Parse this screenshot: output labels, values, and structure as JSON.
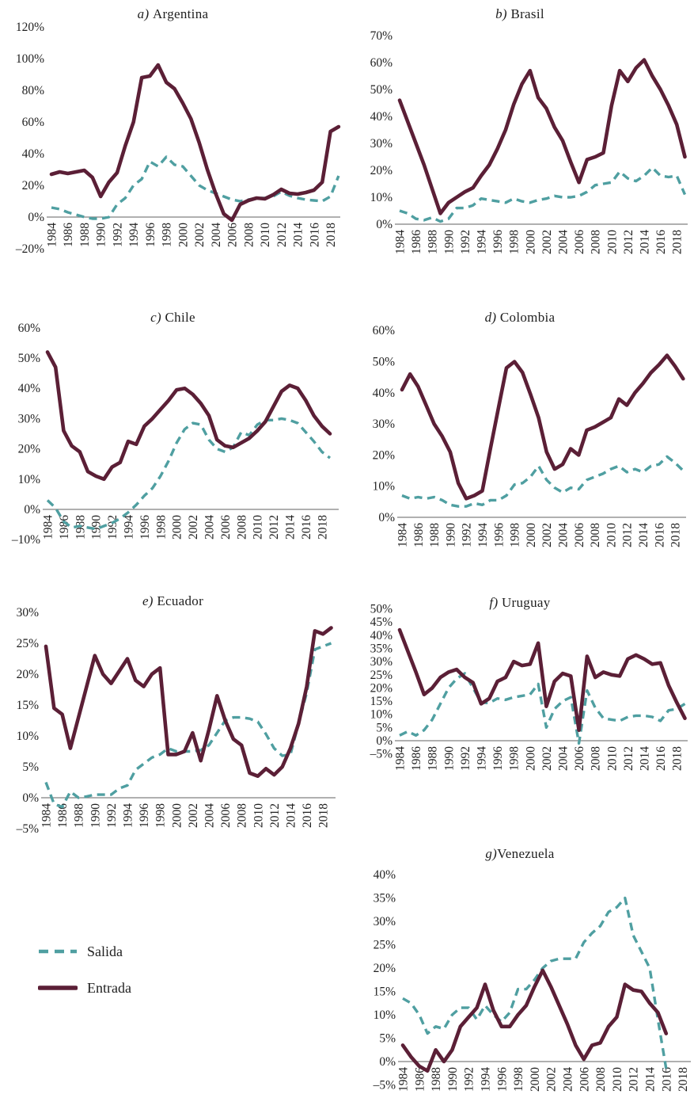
{
  "figure": {
    "description": "Seven small-multiple line charts of inflows and outflows (percent) for Latin American countries, 1984-2019",
    "unit": "%"
  },
  "legend": {
    "salida": "Salida",
    "entrada": "Entrada"
  },
  "colors": {
    "salida": "#4f9fa1",
    "entrada": "#5b1f36",
    "axis": "#808080",
    "text": "#1f1f1f"
  },
  "x_tick_labels": [
    "1984",
    "1986",
    "1988",
    "1990",
    "1992",
    "1994",
    "1996",
    "1998",
    "2000",
    "2002",
    "2004",
    "2006",
    "2008",
    "2010",
    "2012",
    "2014",
    "2016",
    "2018"
  ],
  "chart_data": [
    {
      "id": "a",
      "type": "line",
      "title_prefix": "a)",
      "title": "Argentina",
      "ylim": [
        -20,
        120
      ],
      "ytick_step": 20,
      "x_start": 1984,
      "grid": false,
      "series": [
        {
          "name": "Salida",
          "values": [
            6,
            5,
            3,
            1.5,
            0,
            -1,
            -1,
            0,
            8,
            12,
            20,
            24,
            35,
            32,
            38,
            33,
            32,
            26,
            20,
            17,
            15,
            13,
            11,
            10,
            11,
            12,
            12,
            13,
            16,
            13.5,
            12,
            11,
            10.5,
            10,
            13,
            26
          ]
        },
        {
          "name": "Entrada",
          "values": [
            27,
            28.5,
            27.5,
            28.5,
            29.5,
            25,
            13,
            22,
            28,
            45,
            60,
            88,
            89,
            96,
            85,
            81,
            72,
            62,
            47,
            30,
            15,
            2,
            -2,
            8,
            10.5,
            12,
            11.5,
            14,
            17.5,
            15,
            14.5,
            15.5,
            17,
            22,
            54,
            57
          ]
        }
      ]
    },
    {
      "id": "b",
      "type": "line",
      "title_prefix": "b)",
      "title": "Brasil",
      "ylim": [
        0,
        70
      ],
      "ytick_step": 10,
      "x_start": 1984,
      "grid": false,
      "series": [
        {
          "name": "Salida",
          "values": [
            5,
            4,
            2,
            1.5,
            2.5,
            1,
            2,
            6,
            6,
            7,
            9.5,
            9,
            8.5,
            8,
            9.5,
            8.5,
            8,
            9,
            9.5,
            10.5,
            10,
            10,
            10.5,
            12,
            14.5,
            15,
            15.5,
            19.5,
            17,
            16,
            18,
            21,
            18,
            17.5,
            18,
            11
          ]
        },
        {
          "name": "Entrada",
          "values": [
            46,
            38,
            30,
            22,
            13,
            4,
            8,
            10,
            12,
            13.5,
            18,
            22,
            28,
            35,
            44.5,
            52,
            57,
            47,
            43,
            36,
            31,
            23,
            15.5,
            24,
            25,
            26.5,
            44,
            57,
            53,
            58,
            61,
            55,
            50,
            44,
            37,
            25
          ]
        }
      ]
    },
    {
      "id": "c",
      "type": "line",
      "title_prefix": "c)",
      "title": "Chile",
      "ylim": [
        -10,
        60
      ],
      "ytick_step": 10,
      "x_start": 1984,
      "grid": false,
      "series": [
        {
          "name": "Salida",
          "values": [
            3,
            0.5,
            -4,
            -6,
            -5.5,
            -6,
            -6.5,
            -5.5,
            -4.5,
            -3,
            -1,
            1.5,
            4.5,
            7,
            11,
            16,
            22,
            26.5,
            28.5,
            28,
            23,
            20,
            19,
            20.5,
            25.5,
            24.5,
            28,
            29.5,
            29.5,
            30,
            29.5,
            28.5,
            25.5,
            22.5,
            19,
            17
          ]
        },
        {
          "name": "Entrada",
          "values": [
            52,
            47,
            26,
            21,
            19,
            12.5,
            11,
            10,
            14,
            15.5,
            22.5,
            21.5,
            27.5,
            30,
            33,
            36,
            39.5,
            40,
            38,
            35,
            31,
            23,
            21,
            20.5,
            22,
            23.5,
            26,
            29,
            34,
            39,
            41,
            40,
            36,
            31,
            27.5,
            25
          ]
        }
      ]
    },
    {
      "id": "d",
      "type": "line",
      "title_prefix": "d)",
      "title": "Colombia",
      "ylim": [
        0,
        60
      ],
      "ytick_step": 10,
      "x_start": 1984,
      "grid": false,
      "series": [
        {
          "name": "Salida",
          "values": [
            7,
            6,
            6.5,
            6,
            6.5,
            5.5,
            4,
            3.5,
            3.5,
            4.5,
            4,
            5.5,
            5.5,
            7,
            10.5,
            11,
            13,
            16.5,
            12,
            9.5,
            8,
            9.5,
            9,
            12,
            13,
            14,
            15.5,
            16.5,
            14.5,
            15.5,
            14.5,
            16.5,
            17,
            19.5,
            17.5,
            15
          ]
        },
        {
          "name": "Entrada",
          "values": [
            41,
            46,
            42,
            36,
            30,
            26,
            21,
            11,
            6,
            7,
            8.5,
            22,
            35,
            48,
            50,
            46.5,
            39.5,
            32,
            21,
            15.5,
            17,
            22,
            20,
            28,
            29,
            30.5,
            32,
            38,
            36,
            40,
            43,
            46.5,
            49,
            52,
            48.5,
            44.5
          ]
        }
      ]
    },
    {
      "id": "e",
      "type": "line",
      "title_prefix": "e)",
      "title": "Ecuador",
      "ylim": [
        -5,
        30
      ],
      "ytick_step": 5,
      "x_start": 1984,
      "grid": false,
      "series": [
        {
          "name": "Salida",
          "values": [
            2.5,
            -1,
            -1.5,
            1,
            0,
            0.2,
            0.5,
            0.5,
            0.5,
            1.5,
            2,
            4.5,
            5.5,
            6.5,
            7,
            8,
            7.5,
            7.5,
            7.5,
            7.7,
            8.5,
            10.5,
            12.5,
            13,
            13,
            12.8,
            12.3,
            10.3,
            8,
            6.8,
            7,
            12,
            17,
            24,
            24.5,
            25
          ]
        },
        {
          "name": "Entrada",
          "values": [
            24.5,
            14.5,
            13.5,
            8,
            13,
            18,
            23,
            20,
            18.5,
            20.5,
            22.5,
            19,
            18,
            20,
            21,
            7,
            7,
            7.5,
            10.5,
            6,
            11,
            16.5,
            12.5,
            9.5,
            8.5,
            4,
            3.5,
            4.7,
            3.7,
            5,
            8,
            12,
            18,
            27,
            26.5,
            27.5
          ]
        }
      ]
    },
    {
      "id": "f",
      "type": "line",
      "title_prefix": "f)",
      "title": "Uruguay",
      "ylim": [
        -5,
        50
      ],
      "ytick_step": 5,
      "x_start": 1984,
      "grid": false,
      "series": [
        {
          "name": "Salida",
          "values": [
            2,
            3.5,
            2,
            4,
            8,
            14,
            20,
            23.5,
            25.5,
            20,
            14.5,
            14.3,
            16,
            15.5,
            16.5,
            17,
            17.5,
            21.5,
            5,
            12,
            15,
            16.5,
            -1,
            19,
            12.5,
            8.5,
            8,
            7.5,
            9,
            9.5,
            9.5,
            9,
            7.5,
            11.5,
            12,
            14
          ]
        },
        {
          "name": "Entrada",
          "values": [
            42,
            34,
            26,
            17.5,
            20,
            24,
            26,
            27,
            24,
            22,
            14,
            16,
            22.5,
            24,
            30,
            28.5,
            29,
            37,
            13,
            22.5,
            25.5,
            24.5,
            4,
            32,
            24,
            26,
            25,
            24.5,
            31,
            32.5,
            31,
            29,
            29.5,
            21,
            14.5,
            8.5
          ]
        }
      ]
    },
    {
      "id": "g",
      "type": "line",
      "title_prefix": "g)",
      "title": "Venezuela",
      "ylim": [
        -5,
        40
      ],
      "ytick_step": 5,
      "x_start": 1984,
      "grid": false,
      "series": [
        {
          "name": "Salida",
          "values": [
            13.5,
            12.5,
            10,
            6,
            7.5,
            7,
            10,
            11.5,
            11.5,
            9,
            12,
            10,
            8.5,
            10.5,
            15.5,
            15.5,
            17.5,
            20,
            21.5,
            22,
            22,
            22,
            25.5,
            27.5,
            29,
            32,
            33,
            35,
            27,
            23.5,
            20,
            9,
            -1.5
          ]
        },
        {
          "name": "Entrada",
          "values": [
            3.5,
            1,
            -1,
            -2,
            2.5,
            0,
            2.5,
            7.5,
            9.5,
            11.5,
            16.5,
            11,
            7.5,
            7.5,
            10,
            12,
            16,
            19.5,
            16,
            12,
            8,
            3.5,
            0.5,
            3.5,
            4,
            7.5,
            9.5,
            16.5,
            15.3,
            15,
            12.5,
            10.5,
            6
          ]
        }
      ]
    }
  ]
}
